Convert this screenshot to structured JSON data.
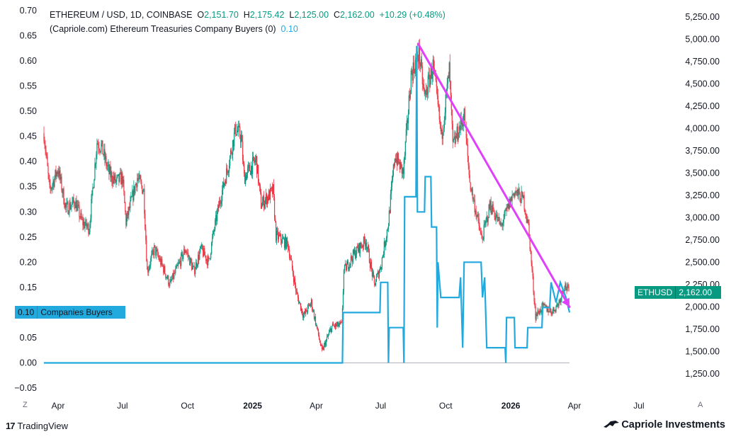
{
  "header": {
    "symbol": "ETHEREUM / USD, 1D, COINBASE",
    "o_label": "O",
    "o_value": "2,151.70",
    "h_label": "H",
    "h_value": "2,175.42",
    "l_label": "L",
    "l_value": "2,125.00",
    "c_label": "C",
    "c_value": "2,162.00",
    "change": "+10.29 (+0.48%)",
    "indicator_name": "(Capriole.com) Ethereum Treasuries Company Buyers (0)",
    "indicator_value": "0.10"
  },
  "badges": {
    "price_symbol": "ETHUSD",
    "price_value": "2,162.00",
    "indicator_value": "0.10",
    "indicator_label": "Companies Buyers"
  },
  "footer": {
    "left_logo_mark": "17",
    "left_logo_text": "TradingView",
    "right_logo_text": "Capriole Investments",
    "corner_left": "Z",
    "corner_right": "A"
  },
  "colors": {
    "up": "#089981",
    "down": "#f23645",
    "indicator": "#22aadf",
    "trendline": "#e040fb",
    "zero_line": "#b2b5be",
    "axis_text": "#131722"
  },
  "chart_data": {
    "type": "candlestick",
    "title": "ETHEREUM / USD, 1D, COINBASE",
    "left_axis": {
      "ylim": [
        -0.05,
        0.7
      ],
      "ticks": [
        "0.70",
        "0.65",
        "0.60",
        "0.55",
        "0.50",
        "0.45",
        "0.40",
        "0.35",
        "0.30",
        "0.25",
        "0.20",
        "0.15",
        "0.10",
        "0.05",
        "0.00",
        "−0.05"
      ]
    },
    "right_axis": {
      "ylim": [
        1250,
        5250
      ],
      "ticks": [
        "5,250.00",
        "5,000.00",
        "4,750.00",
        "4,500.00",
        "4,250.00",
        "4,000.00",
        "3,750.00",
        "3,500.00",
        "3,250.00",
        "3,000.00",
        "2,750.00",
        "2,500.00",
        "2,250.00",
        "2,000.00",
        "1,750.00",
        "1,500.00",
        "1,250.00"
      ]
    },
    "x_axis": {
      "ticks": [
        {
          "date": "2024-04-01",
          "label": "Apr",
          "bold": false
        },
        {
          "date": "2024-07-01",
          "label": "Jul",
          "bold": false
        },
        {
          "date": "2024-10-01",
          "label": "Oct",
          "bold": false
        },
        {
          "date": "2025-01-01",
          "label": "2025",
          "bold": true
        },
        {
          "date": "2025-04-01",
          "label": "Apr",
          "bold": false
        },
        {
          "date": "2025-07-01",
          "label": "Jul",
          "bold": false
        },
        {
          "date": "2025-10-01",
          "label": "Oct",
          "bold": false
        },
        {
          "date": "2026-01-01",
          "label": "2026",
          "bold": true
        },
        {
          "date": "2026-04-01",
          "label": "Apr",
          "bold": false
        },
        {
          "date": "2026-07-01",
          "label": "Jul",
          "bold": false
        }
      ]
    },
    "price_series": {
      "name": "ETHUSD",
      "axis": "right",
      "anchors": [
        [
          "2024-03-12",
          3950
        ],
        [
          "2024-03-20",
          3300
        ],
        [
          "2024-04-01",
          3550
        ],
        [
          "2024-04-12",
          3100
        ],
        [
          "2024-04-25",
          3180
        ],
        [
          "2024-05-05",
          2950
        ],
        [
          "2024-05-15",
          2880
        ],
        [
          "2024-05-26",
          3850
        ],
        [
          "2024-06-01",
          3800
        ],
        [
          "2024-06-12",
          3500
        ],
        [
          "2024-06-22",
          3400
        ],
        [
          "2024-07-01",
          3450
        ],
        [
          "2024-07-06",
          2950
        ],
        [
          "2024-07-22",
          3450
        ],
        [
          "2024-07-31",
          3300
        ],
        [
          "2024-08-05",
          2400
        ],
        [
          "2024-08-15",
          2650
        ],
        [
          "2024-08-27",
          2450
        ],
        [
          "2024-09-06",
          2250
        ],
        [
          "2024-09-20",
          2500
        ],
        [
          "2024-09-28",
          2650
        ],
        [
          "2024-10-10",
          2400
        ],
        [
          "2024-10-20",
          2650
        ],
        [
          "2024-10-31",
          2500
        ],
        [
          "2024-11-06",
          2800
        ],
        [
          "2024-11-16",
          3200
        ],
        [
          "2024-11-28",
          3600
        ],
        [
          "2024-12-08",
          4000
        ],
        [
          "2024-12-16",
          3900
        ],
        [
          "2024-12-20",
          3450
        ],
        [
          "2025-01-06",
          3650
        ],
        [
          "2025-01-13",
          3150
        ],
        [
          "2025-01-30",
          3300
        ],
        [
          "2025-02-03",
          2800
        ],
        [
          "2025-02-20",
          2700
        ],
        [
          "2025-03-04",
          2150
        ],
        [
          "2025-03-14",
          1900
        ],
        [
          "2025-03-25",
          2050
        ],
        [
          "2025-04-09",
          1500
        ],
        [
          "2025-04-23",
          1780
        ],
        [
          "2025-05-07",
          1800
        ],
        [
          "2025-05-10",
          2400
        ],
        [
          "2025-05-25",
          2600
        ],
        [
          "2025-06-10",
          2750
        ],
        [
          "2025-06-22",
          2250
        ],
        [
          "2025-07-01",
          2450
        ],
        [
          "2025-07-12",
          2950
        ],
        [
          "2025-07-21",
          3700
        ],
        [
          "2025-08-02",
          3500
        ],
        [
          "2025-08-13",
          4600
        ],
        [
          "2025-08-24",
          4850
        ],
        [
          "2025-09-01",
          4350
        ],
        [
          "2025-09-13",
          4700
        ],
        [
          "2025-09-25",
          3900
        ],
        [
          "2025-10-06",
          4650
        ],
        [
          "2025-10-11",
          3800
        ],
        [
          "2025-10-27",
          4150
        ],
        [
          "2025-11-04",
          3400
        ],
        [
          "2025-11-21",
          2750
        ],
        [
          "2025-12-03",
          3150
        ],
        [
          "2025-12-18",
          2900
        ],
        [
          "2026-01-06",
          3300
        ],
        [
          "2026-01-19",
          3200
        ],
        [
          "2026-01-26",
          2900
        ],
        [
          "2026-02-05",
          1900
        ],
        [
          "2026-02-15",
          2000
        ],
        [
          "2026-03-01",
          1950
        ],
        [
          "2026-03-10",
          2050
        ],
        [
          "2026-03-18",
          2250
        ],
        [
          "2026-03-25",
          2162
        ]
      ]
    },
    "indicator_series": {
      "name": "Companies Buyers",
      "axis": "left",
      "points": [
        [
          "2024-03-12",
          0
        ],
        [
          "2025-05-08",
          0
        ],
        [
          "2025-05-09",
          0.1
        ],
        [
          "2025-06-30",
          0.1
        ],
        [
          "2025-07-01",
          0.16
        ],
        [
          "2025-07-11",
          0.16
        ],
        [
          "2025-07-12",
          0
        ],
        [
          "2025-07-13",
          0.07
        ],
        [
          "2025-08-02",
          0.07
        ],
        [
          "2025-08-03",
          0
        ],
        [
          "2025-08-04",
          0.33
        ],
        [
          "2025-08-20",
          0.33
        ],
        [
          "2025-08-21",
          0.63
        ],
        [
          "2025-08-22",
          0.3
        ],
        [
          "2025-09-01",
          0.3
        ],
        [
          "2025-09-02",
          0.37
        ],
        [
          "2025-09-10",
          0.37
        ],
        [
          "2025-09-11",
          0.27
        ],
        [
          "2025-09-18",
          0.27
        ],
        [
          "2025-09-19",
          0.07
        ],
        [
          "2025-09-20",
          0.2
        ],
        [
          "2025-09-24",
          0.13
        ],
        [
          "2025-10-20",
          0.13
        ],
        [
          "2025-10-22",
          0.17
        ],
        [
          "2025-10-25",
          0.03
        ],
        [
          "2025-10-27",
          0.2
        ],
        [
          "2025-11-20",
          0.2
        ],
        [
          "2025-11-22",
          0.13
        ],
        [
          "2025-11-25",
          0.17
        ],
        [
          "2025-11-28",
          0.03
        ],
        [
          "2025-12-24",
          0.03
        ],
        [
          "2025-12-25",
          0
        ],
        [
          "2025-12-26",
          0.09
        ],
        [
          "2026-01-06",
          0.09
        ],
        [
          "2026-01-07",
          0.03
        ],
        [
          "2026-01-24",
          0.03
        ],
        [
          "2026-01-25",
          0.07
        ],
        [
          "2026-02-14",
          0.07
        ],
        [
          "2026-02-15",
          0.11
        ],
        [
          "2026-02-25",
          0.11
        ],
        [
          "2026-02-27",
          0.16
        ],
        [
          "2026-03-06",
          0.12
        ],
        [
          "2026-03-12",
          0.16
        ],
        [
          "2026-03-20",
          0.13
        ],
        [
          "2026-03-25",
          0.1
        ]
      ]
    },
    "trendline": {
      "from": [
        "2025-08-23",
        4950
      ],
      "to": [
        "2026-03-25",
        2000
      ],
      "arrow": true
    },
    "zero_line": 0
  }
}
